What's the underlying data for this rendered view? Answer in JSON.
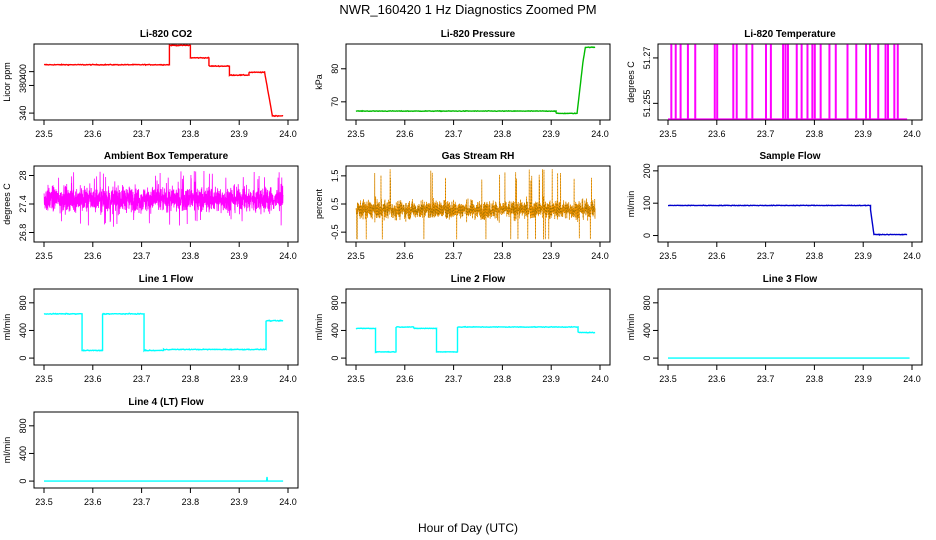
{
  "figure": {
    "title": "NWR_160420  1 Hz Diagnostics Zoomed PM",
    "xlabel": "Hour of Day (UTC)"
  },
  "chart_data": [
    {
      "id": "co2",
      "type": "line",
      "title": "Li-820 CO2",
      "ylabel": "Licor ppm",
      "color": "#ff0000",
      "xlim": [
        23.5,
        24.0
      ],
      "ylim": [
        330,
        440
      ],
      "xticks": [
        23.5,
        23.6,
        23.7,
        23.8,
        23.9,
        24.0
      ],
      "yticks": [
        340,
        380,
        400
      ],
      "series": [
        {
          "name": "CO2",
          "shape": "steps",
          "noise": 1,
          "points": [
            [
              23.5,
              410
            ],
            [
              23.757,
              410
            ],
            [
              23.757,
              438
            ],
            [
              23.8,
              438
            ],
            [
              23.8,
              420
            ],
            [
              23.838,
              420
            ],
            [
              23.838,
              408
            ],
            [
              23.88,
              408
            ],
            [
              23.88,
              395
            ],
            [
              23.92,
              395
            ],
            [
              23.92,
              399
            ],
            [
              23.952,
              399
            ],
            [
              23.962,
              360
            ],
            [
              23.968,
              336
            ],
            [
              23.99,
              336
            ]
          ]
        }
      ]
    },
    {
      "id": "pressure",
      "type": "line",
      "title": "Li-820 Pressure",
      "ylabel": "kPa",
      "color": "#00bb00",
      "xlim": [
        23.5,
        24.0
      ],
      "ylim": [
        64.5,
        87.5
      ],
      "xticks": [
        23.5,
        23.6,
        23.7,
        23.8,
        23.9,
        24.0
      ],
      "yticks": [
        70,
        80
      ],
      "series": [
        {
          "name": "Pressure",
          "shape": "steps",
          "noise": 0.15,
          "points": [
            [
              23.5,
              67.2
            ],
            [
              23.91,
              67.2
            ],
            [
              23.91,
              66.5
            ],
            [
              23.953,
              66.5
            ],
            [
              23.965,
              82
            ],
            [
              23.97,
              86.5
            ],
            [
              23.99,
              86.5
            ]
          ]
        }
      ]
    },
    {
      "id": "licor_temp",
      "type": "line",
      "title": "Li-820 Temperature",
      "ylabel": "degrees C",
      "color": "#ff00ff",
      "xlim": [
        23.5,
        24.0
      ],
      "ylim": [
        51.2495,
        51.2746
      ],
      "xticks": [
        23.5,
        23.6,
        23.7,
        23.8,
        23.9,
        24.0
      ],
      "yticks": [
        51.255,
        51.27
      ],
      "series": [
        {
          "name": "Temperature",
          "shape": "spikes",
          "base": 51.2495,
          "high": 51.2746,
          "events": [
            23.506,
            23.515,
            23.525,
            23.54,
            23.555,
            23.595,
            23.6,
            23.633,
            23.64,
            23.66,
            23.672,
            23.7,
            23.71,
            23.735,
            23.74,
            23.745,
            23.763,
            23.773,
            23.785,
            23.795,
            23.8,
            23.812,
            23.83,
            23.843,
            23.867,
            23.885,
            23.905,
            23.913,
            23.93,
            23.945,
            23.95,
            23.963,
            23.97
          ]
        }
      ]
    },
    {
      "id": "ambient_temp",
      "type": "line",
      "title": "Ambient Box Temperature",
      "ylabel": "degrees C",
      "color": "#ff00ff",
      "xlim": [
        23.5,
        24.0
      ],
      "ylim": [
        26.6,
        28.2
      ],
      "xticks": [
        23.5,
        23.6,
        23.7,
        23.8,
        23.9,
        24.0
      ],
      "yticks": [
        26.8,
        27.4,
        28.0
      ],
      "series": [
        {
          "name": "Ambient",
          "shape": "noise",
          "center": 27.5,
          "spread": 0.28,
          "min": 26.65,
          "max": 28.1,
          "count": 1800,
          "points": [
            [
              23.5,
              27.5
            ],
            [
              23.99,
              27.5
            ]
          ]
        }
      ]
    },
    {
      "id": "gas_rh",
      "type": "line",
      "title": "Gas Stream RH",
      "ylabel": "percent",
      "color": "#ff9900",
      "xlim": [
        23.5,
        24.0
      ],
      "ylim": [
        -0.85,
        1.85
      ],
      "xticks": [
        23.5,
        23.6,
        23.7,
        23.8,
        23.9,
        24.0
      ],
      "yticks": [
        -0.5,
        0.5,
        1.5
      ],
      "series": [
        {
          "name": "RH",
          "shape": "noise",
          "center": 0.3,
          "spread": 0.35,
          "min": -0.75,
          "max": 1.75,
          "count": 1800,
          "points_glyph": true,
          "points": [
            [
              23.5,
              0.3
            ],
            [
              23.99,
              0.3
            ]
          ]
        }
      ]
    },
    {
      "id": "sample_flow",
      "type": "line",
      "title": "Sample Flow",
      "ylabel": "ml/min",
      "color": "#0000cc",
      "xlim": [
        23.5,
        24.0
      ],
      "ylim": [
        -20,
        215
      ],
      "xticks": [
        23.5,
        23.6,
        23.7,
        23.8,
        23.9,
        24.0
      ],
      "yticks": [
        0,
        100,
        200
      ],
      "series": [
        {
          "name": "Sample",
          "shape": "steps",
          "noise": 1.5,
          "points": [
            [
              23.5,
              93
            ],
            [
              23.915,
              93
            ],
            [
              23.915,
              80
            ],
            [
              23.922,
              3
            ],
            [
              23.99,
              3
            ]
          ]
        }
      ]
    },
    {
      "id": "line1_flow",
      "type": "line",
      "title": "Line 1 Flow",
      "ylabel": "ml/min",
      "color": "#00ffff",
      "xlim": [
        23.5,
        24.0
      ],
      "ylim": [
        -100,
        1000
      ],
      "xticks": [
        23.5,
        23.6,
        23.7,
        23.8,
        23.9,
        24.0
      ],
      "yticks": [
        0,
        400,
        800
      ],
      "series": [
        {
          "name": "Line 1",
          "shape": "steps",
          "noise": 10,
          "points": [
            [
              23.5,
              640
            ],
            [
              23.578,
              640
            ],
            [
              23.578,
              110
            ],
            [
              23.62,
              110
            ],
            [
              23.62,
              640
            ],
            [
              23.705,
              640
            ],
            [
              23.705,
              110
            ],
            [
              23.745,
              110
            ],
            [
              23.745,
              125
            ],
            [
              23.955,
              125
            ],
            [
              23.955,
              540
            ],
            [
              23.99,
              540
            ]
          ]
        }
      ]
    },
    {
      "id": "line2_flow",
      "type": "line",
      "title": "Line 2 Flow",
      "ylabel": "ml/min",
      "color": "#00ffff",
      "xlim": [
        23.5,
        24.0
      ],
      "ylim": [
        -100,
        1000
      ],
      "xticks": [
        23.5,
        23.6,
        23.7,
        23.8,
        23.9,
        24.0
      ],
      "yticks": [
        0,
        400,
        800
      ],
      "series": [
        {
          "name": "Line 2",
          "shape": "steps",
          "noise": 8,
          "points": [
            [
              23.5,
              430
            ],
            [
              23.54,
              430
            ],
            [
              23.54,
              90
            ],
            [
              23.582,
              90
            ],
            [
              23.582,
              450
            ],
            [
              23.618,
              450
            ],
            [
              23.618,
              430
            ],
            [
              23.665,
              430
            ],
            [
              23.665,
              90
            ],
            [
              23.708,
              90
            ],
            [
              23.708,
              450
            ],
            [
              23.955,
              450
            ],
            [
              23.955,
              370
            ],
            [
              23.99,
              370
            ]
          ]
        }
      ]
    },
    {
      "id": "line3_flow",
      "type": "line",
      "title": "Line 3 Flow",
      "ylabel": "ml/min",
      "color": "#00ffff",
      "xlim": [
        23.5,
        24.0
      ],
      "ylim": [
        -100,
        1000
      ],
      "xticks": [
        23.5,
        23.6,
        23.7,
        23.8,
        23.9,
        24.0
      ],
      "yticks": [
        0,
        400,
        800
      ],
      "series": [
        {
          "name": "Line 3",
          "shape": "steps",
          "noise": 0,
          "points": [
            [
              23.5,
              0
            ],
            [
              23.995,
              0
            ]
          ]
        }
      ]
    },
    {
      "id": "line4_flow",
      "type": "line",
      "title": "Line 4 (LT) Flow",
      "ylabel": "ml/min",
      "color": "#00ffff",
      "xlim": [
        23.5,
        24.0
      ],
      "ylim": [
        -100,
        1000
      ],
      "xticks": [
        23.5,
        23.6,
        23.7,
        23.8,
        23.9,
        24.0
      ],
      "yticks": [
        0,
        400,
        800
      ],
      "series": [
        {
          "name": "Line 4",
          "shape": "steps",
          "noise": 0,
          "points": [
            [
              23.5,
              0
            ],
            [
              23.956,
              0
            ],
            [
              23.957,
              60
            ],
            [
              23.958,
              0
            ],
            [
              23.99,
              0
            ]
          ]
        }
      ]
    }
  ]
}
